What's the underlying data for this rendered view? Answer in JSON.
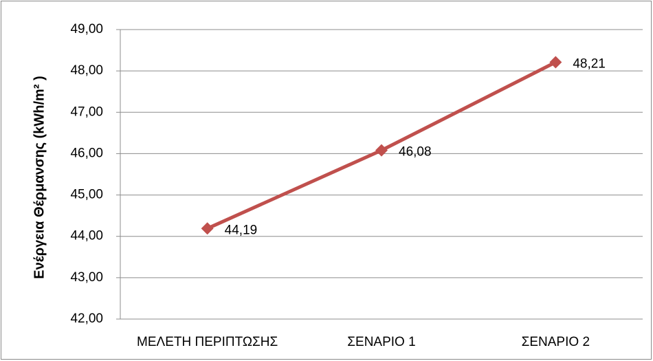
{
  "chart_data": {
    "type": "line",
    "ylabel": "Ενέργεια Θέρμανσης (kWh/m² )",
    "categories": [
      "ΜΕΛΕΤΗ ΠΕΡΙΠΤΩΣΗΣ",
      "ΣΕΝΑΡΙΟ 1",
      "ΣΕΝΑΡΙΟ 2"
    ],
    "values": [
      44.19,
      46.08,
      48.21
    ],
    "value_labels": [
      "44,19",
      "46,08",
      "48,21"
    ],
    "color": "#c0504d",
    "ylim": [
      42,
      49
    ],
    "yticks": [
      {
        "value": 42,
        "label": "42,00"
      },
      {
        "value": 43,
        "label": "43,00"
      },
      {
        "value": 44,
        "label": "44,00"
      },
      {
        "value": 45,
        "label": "45,00"
      },
      {
        "value": 46,
        "label": "46,00"
      },
      {
        "value": 47,
        "label": "47,00"
      },
      {
        "value": 48,
        "label": "48,00"
      },
      {
        "value": 49,
        "label": "49,00"
      }
    ],
    "grid": true
  }
}
